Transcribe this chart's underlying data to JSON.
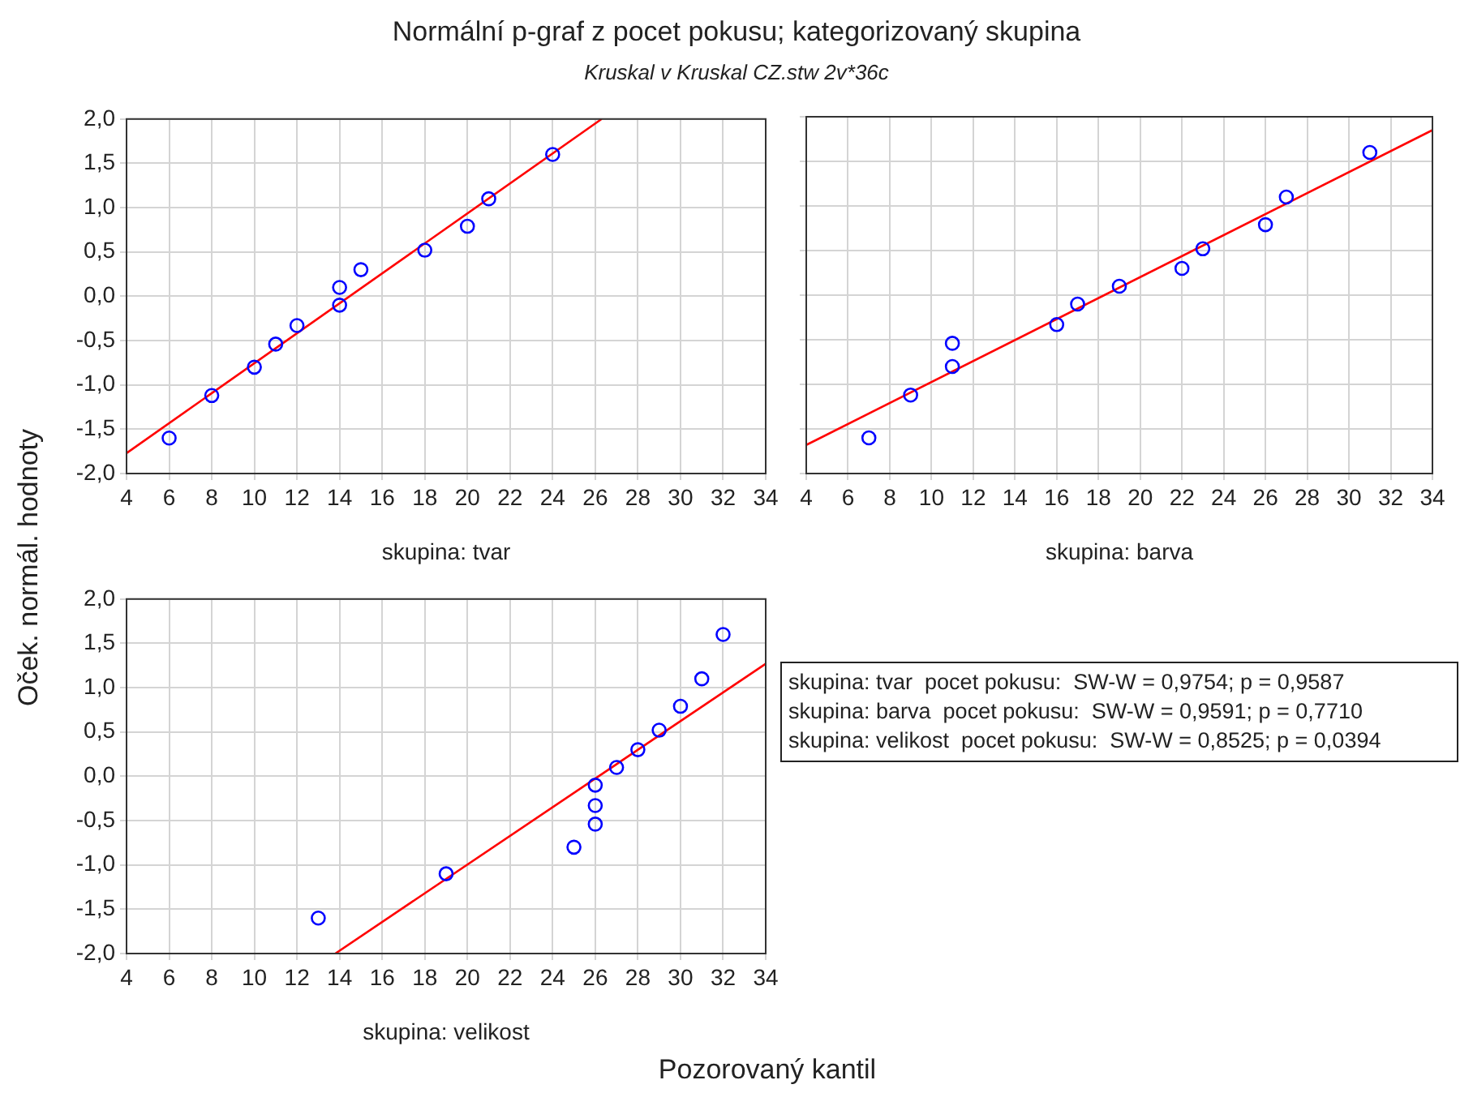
{
  "chart_data": [
    {
      "type": "scatter",
      "title": "Normální p-graf z pocet pokusu; kategorizovaný skupina",
      "subtitle": "Kruskal v Kruskal CZ.stw 2v*36c",
      "ylabel": "Oček. normál. hodnoty",
      "xlabel": "Pozorovaný kantil",
      "annotations": [
        "skupina: tvar"
      ],
      "xlim": [
        4,
        34
      ],
      "xticks": [
        4,
        6,
        8,
        10,
        12,
        14,
        16,
        18,
        20,
        22,
        24,
        26,
        28,
        30,
        32,
        34
      ],
      "ylim": [
        -2,
        2
      ],
      "yticks": [
        {
          "value": -2,
          "label": "-2,0"
        },
        {
          "value": -1.5,
          "label": "-1,5"
        },
        {
          "value": -1,
          "label": "-1,0"
        },
        {
          "value": -0.5,
          "label": "-0,5"
        },
        {
          "value": 0,
          "label": "0,0"
        },
        {
          "value": 0.5,
          "label": "0,5"
        },
        {
          "value": 1,
          "label": "1,0"
        },
        {
          "value": 1.5,
          "label": "1,5"
        },
        {
          "value": 2,
          "label": "2,0"
        }
      ],
      "grid": true,
      "legend": false,
      "marker": "circle",
      "series": [
        {
          "type": "scatter",
          "color": "#0000ff",
          "x": [
            6,
            8,
            10,
            11,
            12,
            14,
            14,
            15,
            18,
            20,
            21,
            24
          ],
          "values": [
            -1.6,
            -1.12,
            -0.8,
            -0.54,
            -0.33,
            -0.1,
            0.1,
            0.3,
            0.52,
            0.79,
            1.1,
            1.6
          ]
        },
        {
          "type": "line",
          "color": "#ff0000",
          "marker": "none",
          "x": [
            4,
            26.3
          ],
          "values": [
            -1.77,
            2.0
          ]
        }
      ]
    },
    {
      "type": "scatter",
      "annotations": [
        "skupina: barva"
      ],
      "xlim": [
        4,
        34
      ],
      "xticks": [
        4,
        6,
        8,
        10,
        12,
        14,
        16,
        18,
        20,
        22,
        24,
        26,
        28,
        30,
        32,
        34
      ],
      "ylim": [
        -2,
        2
      ],
      "yticks": [
        {
          "value": -2,
          "label": null
        },
        {
          "value": -1.5,
          "label": null
        },
        {
          "value": -1,
          "label": null
        },
        {
          "value": -0.5,
          "label": null
        },
        {
          "value": 0,
          "label": null
        },
        {
          "value": 0.5,
          "label": null
        },
        {
          "value": 1,
          "label": null
        },
        {
          "value": 1.5,
          "label": null
        },
        {
          "value": 2,
          "label": null
        }
      ],
      "tick_labels": "x",
      "grid": true,
      "legend": false,
      "marker": "circle",
      "series": [
        {
          "type": "scatter",
          "color": "#0000ff",
          "x": [
            7,
            9,
            11,
            11,
            16,
            17,
            19,
            22,
            23,
            26,
            27,
            31
          ],
          "values": [
            -1.6,
            -1.12,
            -0.8,
            -0.54,
            -0.33,
            -0.1,
            0.1,
            0.3,
            0.52,
            0.79,
            1.1,
            1.6
          ]
        },
        {
          "type": "line",
          "color": "#ff0000",
          "marker": "none",
          "x": [
            4,
            34
          ],
          "values": [
            -1.68,
            1.85
          ]
        }
      ]
    },
    {
      "type": "scatter",
      "annotations": [
        "skupina: velikost",
        "skupina: tvar  pocet pokusu:  SW-W = 0,9754; p = 0,9587",
        "skupina: barva  pocet pokusu:  SW-W = 0,9591; p = 0,7710",
        "skupina: velikost  pocet pokusu:  SW-W = 0,8525; p = 0,0394"
      ],
      "xlim": [
        4,
        34
      ],
      "xticks": [
        4,
        6,
        8,
        10,
        12,
        14,
        16,
        18,
        20,
        22,
        24,
        26,
        28,
        30,
        32,
        34
      ],
      "ylim": [
        -2,
        2
      ],
      "yticks": [
        {
          "value": -2,
          "label": "-2,0"
        },
        {
          "value": -1.5,
          "label": "-1,5"
        },
        {
          "value": -1,
          "label": "-1,0"
        },
        {
          "value": -0.5,
          "label": "-0,5"
        },
        {
          "value": 0,
          "label": "0,0"
        },
        {
          "value": 0.5,
          "label": "0,5"
        },
        {
          "value": 1,
          "label": "1,0"
        },
        {
          "value": 1.5,
          "label": "1,5"
        },
        {
          "value": 2,
          "label": "2,0"
        }
      ],
      "grid": true,
      "legend": false,
      "marker": "circle",
      "series": [
        {
          "type": "scatter",
          "color": "#0000ff",
          "x": [
            13,
            19,
            25,
            26,
            26,
            26,
            27,
            28,
            29,
            30,
            31,
            32
          ],
          "values": [
            -1.6,
            -1.1,
            -0.8,
            -0.54,
            -0.33,
            -0.1,
            0.1,
            0.3,
            0.52,
            0.79,
            1.1,
            1.6
          ]
        },
        {
          "type": "line",
          "color": "#ff0000",
          "marker": "none",
          "x": [
            13.8,
            34
          ],
          "values": [
            -2.0,
            1.27
          ]
        }
      ]
    }
  ]
}
